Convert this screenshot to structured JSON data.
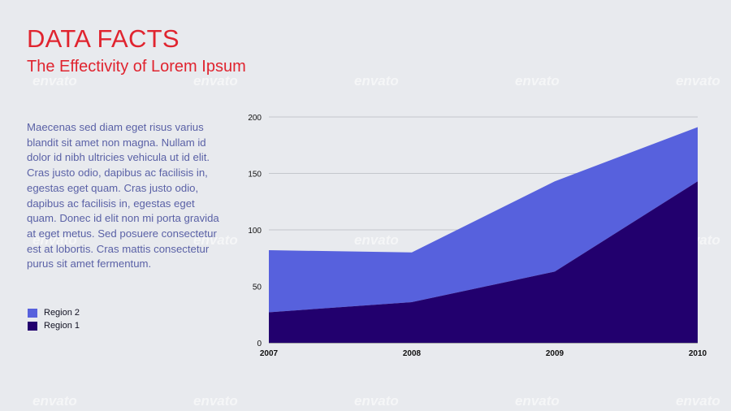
{
  "slide": {
    "title": "DATA FACTS",
    "subtitle": "The Effectivity of Lorem Ipsum",
    "body": "Maecenas sed diam eget risus varius blandit sit amet non magna. Nullam id dolor id nibh ultricies vehicula ut id elit. Cras justo odio, dapibus ac facilisis in, egestas eget quam. Cras justo odio, dapibus ac facilisis in, egestas eget quam. Donec id elit non mi porta gravida at eget metus. Sed posuere consectetur est at lobortis. Cras mattis consectetur purus sit amet fermentum.",
    "watermark": "envato",
    "colors": {
      "title": "#e0242f",
      "body": "#5a61a6",
      "background": "#e8eaee"
    }
  },
  "chart_data": {
    "type": "area",
    "stacked": true,
    "x": [
      "2007",
      "2008",
      "2009",
      "2010"
    ],
    "ylim": [
      0,
      200
    ],
    "yticks": [
      0,
      50,
      100,
      150,
      200
    ],
    "grid": true,
    "legend_position": "left",
    "series": [
      {
        "name": "Region 1",
        "values": [
          27,
          36,
          63,
          143
        ],
        "color": "#22006e"
      },
      {
        "name": "Region 2",
        "values": [
          55,
          44,
          80,
          48
        ],
        "color": "#5761dd"
      }
    ]
  }
}
